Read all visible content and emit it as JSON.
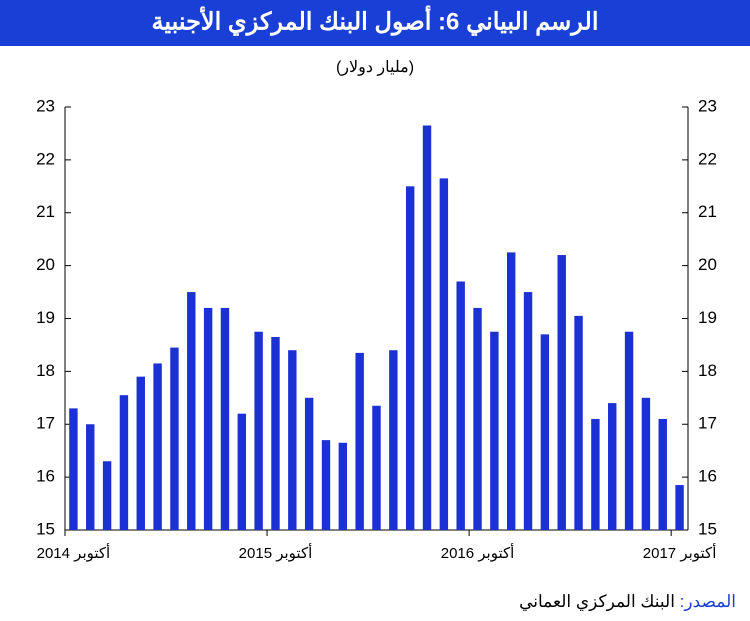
{
  "chart_data": {
    "type": "bar",
    "title": "الرسم البياني 6: أصول البنك المركزي الأجنبية",
    "subtitle": "(مليار دولار)",
    "categories": [
      "أكتوبر 2014",
      null,
      null,
      null,
      null,
      null,
      null,
      null,
      null,
      null,
      null,
      null,
      "أكتوبر 2015",
      null,
      null,
      null,
      null,
      null,
      null,
      null,
      null,
      null,
      null,
      null,
      "أكتوبر 2016",
      null,
      null,
      null,
      null,
      null,
      null,
      null,
      null,
      null,
      null,
      null,
      "أكتوبر 2017"
    ],
    "values": [
      17.3,
      17.0,
      16.3,
      17.55,
      17.9,
      18.15,
      18.45,
      19.5,
      19.2,
      19.2,
      17.2,
      18.75,
      18.65,
      18.4,
      17.5,
      16.7,
      16.65,
      18.35,
      17.35,
      18.4,
      21.5,
      22.65,
      21.65,
      19.7,
      19.2,
      18.75,
      20.25,
      19.5,
      18.7,
      20.2,
      19.05,
      17.1,
      17.4,
      18.75,
      17.5,
      17.1,
      15.85
    ],
    "color": "#1c31d4",
    "ylim": [
      15,
      23
    ],
    "yticks": [
      15,
      16,
      17,
      18,
      19,
      20,
      21,
      22,
      23
    ],
    "source_label": "المصدر:",
    "source_text": "البنك المركزي العماني"
  }
}
